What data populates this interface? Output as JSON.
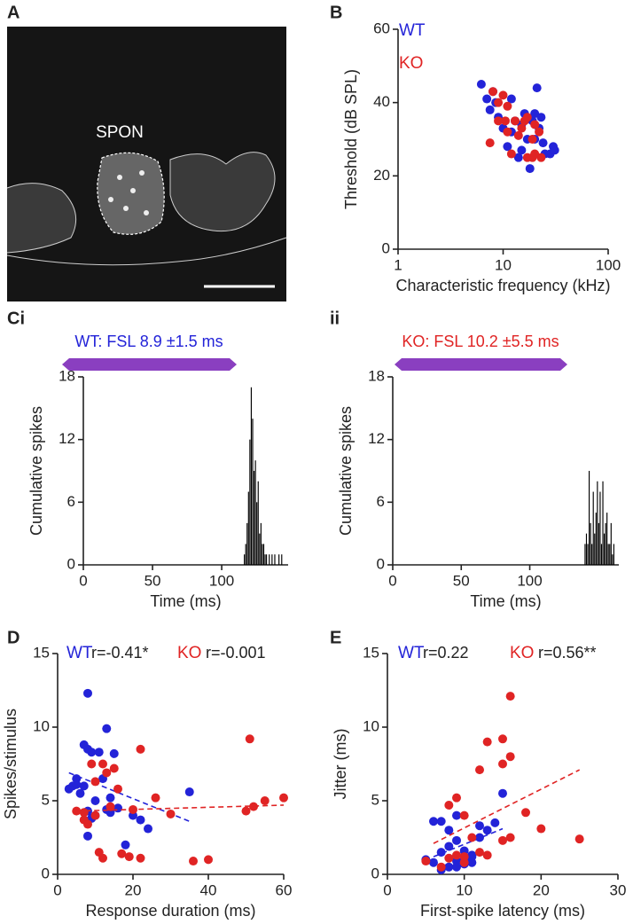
{
  "panel_a": {
    "panel_label": "A",
    "annotation": "SPON"
  },
  "chart_data": [
    {
      "panel_label": "B",
      "type": "scatter",
      "xlabel": "Characteristic frequency (kHz)",
      "ylabel": "Threshold (dB SPL)",
      "x_scale": "log",
      "xlim": [
        1,
        100
      ],
      "xticks": [
        1,
        10,
        100
      ],
      "ylim": [
        0,
        60
      ],
      "yticks": [
        0,
        20,
        40,
        60
      ],
      "legend": "upper left",
      "series": [
        {
          "name": "WT",
          "color": "#2323d8",
          "x": [
            6.2,
            7,
            7.5,
            8,
            9,
            10,
            11,
            12,
            13,
            14,
            15,
            16,
            17,
            18,
            19,
            20,
            21,
            22,
            23,
            24,
            25,
            28,
            30,
            31,
            8.5,
            12,
            15,
            20
          ],
          "values": [
            45,
            41,
            38,
            43,
            36,
            33,
            28,
            32,
            35,
            25,
            34,
            37,
            30,
            22,
            35,
            37,
            44,
            33,
            36,
            29,
            26,
            26,
            28,
            27,
            40,
            41,
            27,
            30
          ]
        },
        {
          "name": "KO",
          "color": "#e02424",
          "x": [
            7.5,
            8,
            9,
            10,
            10.5,
            11,
            12,
            13,
            14,
            15,
            16,
            17,
            17,
            19,
            20,
            20,
            22,
            23,
            9,
            11,
            19
          ],
          "values": [
            29,
            43,
            40,
            42,
            35,
            32,
            26,
            35,
            31,
            33,
            35,
            36,
            25,
            30,
            34,
            26,
            32,
            25,
            35,
            39,
            25
          ]
        }
      ]
    },
    {
      "panel_label": "Ci",
      "type": "histogram",
      "xlabel": "Time (ms)",
      "ylabel": "Cumulative spikes",
      "annotation": "WT: FSL 8.9 ±1.5 ms",
      "annotation_color": "#2323d8",
      "xlim": [
        0,
        148
      ],
      "xticks": [
        0,
        50,
        100
      ],
      "ylim": [
        0,
        18
      ],
      "yticks": [
        0,
        6,
        12,
        18
      ],
      "color": "#000000",
      "bins": [
        116,
        117,
        118,
        119,
        120,
        121,
        122,
        123,
        124,
        125,
        126,
        127,
        128,
        129,
        130,
        131,
        132,
        133,
        134,
        135,
        136,
        137,
        138,
        139,
        140,
        141,
        142,
        143,
        144
      ],
      "values": [
        1,
        2,
        4,
        7,
        12,
        17,
        14,
        9,
        10,
        6,
        8,
        3,
        4,
        2,
        2,
        1,
        1,
        0,
        1,
        0,
        1,
        0,
        1,
        0,
        0,
        1,
        0,
        1
      ]
    },
    {
      "panel_label": "ii",
      "type": "histogram",
      "xlabel": "Time (ms)",
      "ylabel": "Cumulative spikes",
      "annotation": "KO: FSL 10.2 ±5.5 ms",
      "annotation_color": "#e02424",
      "xlim": [
        0,
        165
      ],
      "xticks": [
        0,
        50,
        100
      ],
      "ylim": [
        0,
        18
      ],
      "yticks": [
        0,
        6,
        12,
        18
      ],
      "color": "#000000",
      "bins": [
        140,
        141,
        142,
        143,
        144,
        145,
        146,
        147,
        148,
        149,
        150,
        151,
        152,
        153,
        154,
        155,
        156,
        157,
        158,
        159,
        160,
        161,
        162
      ],
      "values": [
        2,
        3,
        2,
        9,
        4,
        2,
        7,
        3,
        5,
        8,
        4,
        7,
        2,
        8,
        3,
        4,
        5,
        2,
        2,
        4,
        1,
        2
      ]
    },
    {
      "panel_label": "D",
      "type": "scatter",
      "xlabel": "Response duration (ms)",
      "ylabel": "Spikes/stimulus",
      "xlim": [
        0,
        60
      ],
      "xticks": [
        0,
        20,
        40,
        60
      ],
      "ylim": [
        0,
        15
      ],
      "yticks": [
        0,
        5,
        10,
        15
      ],
      "legend": "above",
      "series": [
        {
          "name": "WT",
          "color": "#2323d8",
          "r_label": "r=-0.41*",
          "x": [
            3,
            4,
            5,
            6,
            7,
            7,
            8,
            8,
            8,
            8,
            9,
            9,
            10,
            11,
            12,
            13,
            13,
            14,
            15,
            16,
            18,
            20,
            22,
            24,
            35,
            5,
            10,
            14
          ],
          "values": [
            5.8,
            6,
            6.5,
            5.5,
            8.8,
            6,
            12.3,
            8.5,
            4.3,
            2.6,
            8.3,
            3.8,
            5,
            8.3,
            6.5,
            9.9,
            4.4,
            5.2,
            8.2,
            4.5,
            2,
            4,
            3.7,
            3.1,
            5.6,
            6.1,
            4,
            4.2
          ],
          "fit_x": [
            3,
            35
          ],
          "fit_y": [
            6.9,
            3.6
          ]
        },
        {
          "name": "KO",
          "color": "#e02424",
          "r_label": "r=-0.001",
          "x": [
            5,
            7,
            7,
            8,
            9,
            10,
            10,
            11,
            12,
            12,
            13,
            14,
            15,
            16,
            17,
            19,
            20,
            22,
            22,
            26,
            30,
            36,
            40,
            50,
            51,
            52,
            55,
            60
          ],
          "values": [
            4.3,
            3.7,
            4.2,
            3.4,
            7.5,
            6.3,
            4,
            1.5,
            1.1,
            7.5,
            6.9,
            4.6,
            7.2,
            5.8,
            1.4,
            1.2,
            4.4,
            8.5,
            1.1,
            5.2,
            4.1,
            0.9,
            1,
            4.3,
            9.2,
            4.6,
            5,
            5.2
          ],
          "fit_x": [
            5,
            60
          ],
          "fit_y": [
            4.3,
            4.7
          ]
        }
      ]
    },
    {
      "panel_label": "E",
      "type": "scatter",
      "xlabel": "First-spike latency (ms)",
      "ylabel": "Jitter (ms)",
      "xlim": [
        0,
        30
      ],
      "xticks": [
        0,
        10,
        20,
        30
      ],
      "ylim": [
        0,
        15
      ],
      "yticks": [
        0,
        5,
        10,
        15
      ],
      "legend": "above",
      "series": [
        {
          "name": "WT",
          "color": "#2323d8",
          "r_label": "r=0.22",
          "x": [
            5,
            6,
            6,
            7,
            7,
            8,
            8,
            9,
            9,
            9,
            10,
            10,
            11,
            11,
            12,
            12,
            13,
            14,
            15,
            7,
            8,
            10,
            9,
            11
          ],
          "values": [
            1,
            3.6,
            0.8,
            0.3,
            3.6,
            0.5,
            3,
            4,
            2.3,
            0.9,
            1,
            0.7,
            1.3,
            0.8,
            2.5,
            3.3,
            3,
            3.5,
            5.5,
            1.5,
            1.9,
            1.6,
            0.5,
            1.2
          ],
          "fit_x": [
            6,
            15
          ],
          "fit_y": [
            1.2,
            3.1
          ]
        },
        {
          "name": "KO",
          "color": "#e02424",
          "r_label": "r=0.56**",
          "x": [
            5,
            7,
            8,
            9,
            9,
            10,
            10,
            10,
            12,
            12,
            13,
            13,
            15,
            15,
            15,
            16,
            16,
            16,
            18,
            20,
            25,
            11,
            8
          ],
          "values": [
            0.9,
            0.5,
            4.7,
            5.2,
            1.3,
            4,
            1.2,
            0.8,
            7.1,
            1.5,
            9,
            1.3,
            2.3,
            9.2,
            7.5,
            12.1,
            2.5,
            8,
            4.2,
            3.1,
            2.4,
            2.5,
            1.1
          ],
          "fit_x": [
            6,
            25
          ],
          "fit_y": [
            2.1,
            7.1
          ]
        }
      ]
    }
  ]
}
